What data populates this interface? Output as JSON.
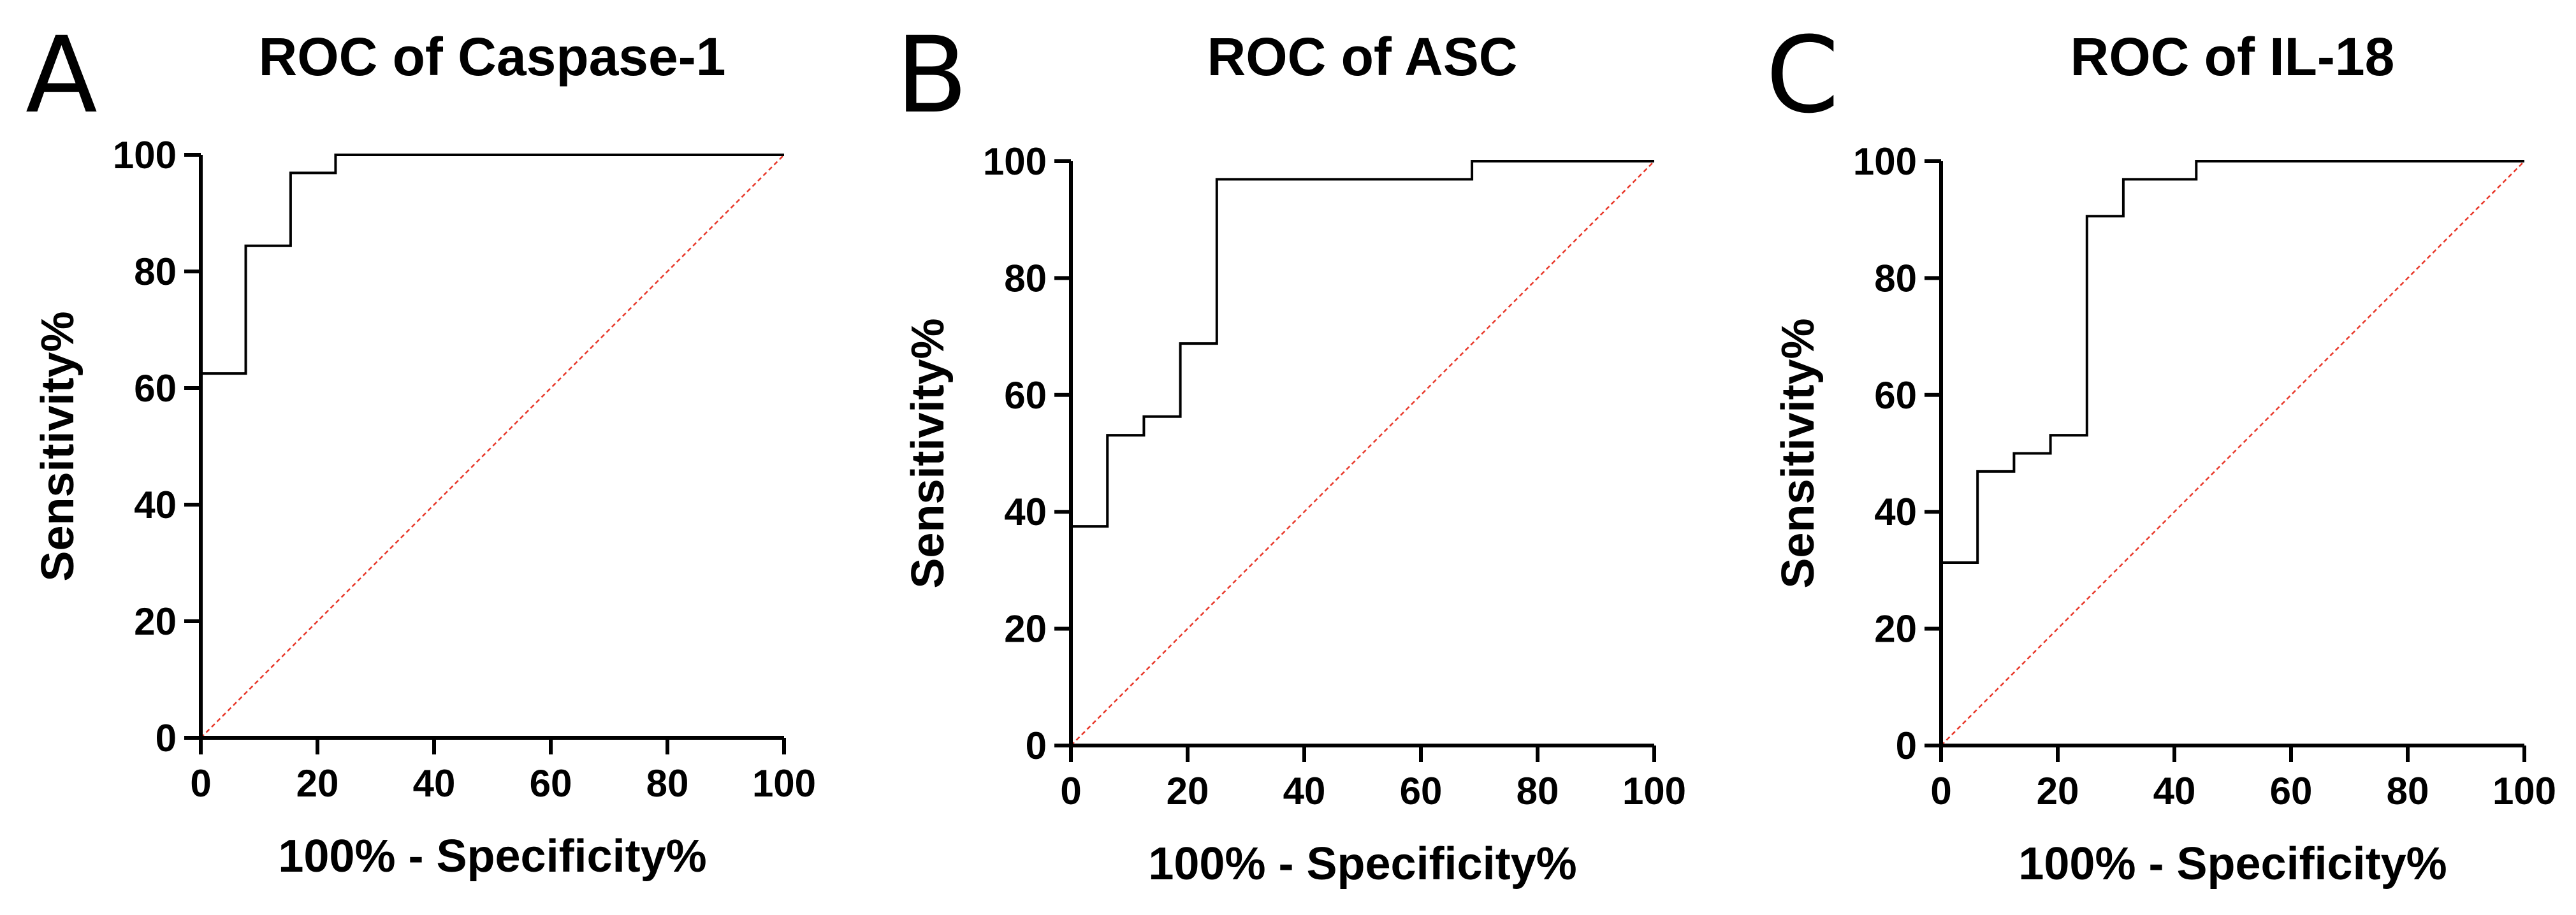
{
  "chart_data": [
    {
      "type": "line",
      "panel": "A",
      "title": "ROC of Caspase-1",
      "xlabel": "100% - Specificity%",
      "ylabel": "Sensitivity%",
      "xlim": [
        0,
        100
      ],
      "ylim": [
        0,
        100
      ],
      "xticks": [
        0,
        20,
        40,
        60,
        80,
        100
      ],
      "yticks": [
        0,
        20,
        40,
        60,
        80,
        100
      ],
      "series": [
        {
          "name": "ROC curve",
          "x": [
            0,
            7.7,
            7.7,
            15.4,
            15.4,
            23.1,
            23.1,
            100
          ],
          "y": [
            62.5,
            62.5,
            84.4,
            84.4,
            96.9,
            96.9,
            100,
            100
          ]
        },
        {
          "name": "Reference line",
          "x": [
            0,
            100
          ],
          "y": [
            0,
            100
          ]
        }
      ]
    },
    {
      "type": "line",
      "panel": "B",
      "title": "ROC of ASC",
      "xlabel": "100% - Specificity%",
      "ylabel": "Sensitivity%",
      "xlim": [
        0,
        100
      ],
      "ylim": [
        0,
        100
      ],
      "xticks": [
        0,
        20,
        40,
        60,
        80,
        100
      ],
      "yticks": [
        0,
        20,
        40,
        60,
        80,
        100
      ],
      "series": [
        {
          "name": "ROC curve",
          "x": [
            0,
            6.25,
            6.25,
            12.5,
            12.5,
            18.75,
            18.75,
            25,
            25,
            68.75,
            68.75,
            100
          ],
          "y": [
            37.5,
            37.5,
            53.1,
            53.1,
            56.3,
            56.3,
            68.8,
            68.8,
            96.9,
            96.9,
            100,
            100
          ]
        },
        {
          "name": "Reference line",
          "x": [
            0,
            100
          ],
          "y": [
            0,
            100
          ]
        }
      ]
    },
    {
      "type": "line",
      "panel": "C",
      "title": "ROC of IL-18",
      "xlabel": "100% - Specificity%",
      "ylabel": "Sensitivity%",
      "xlim": [
        0,
        100
      ],
      "ylim": [
        0,
        100
      ],
      "xticks": [
        0,
        20,
        40,
        60,
        80,
        100
      ],
      "yticks": [
        0,
        20,
        40,
        60,
        80,
        100
      ],
      "series": [
        {
          "name": "ROC curve",
          "x": [
            0,
            6.25,
            6.25,
            12.5,
            12.5,
            18.75,
            18.75,
            25,
            25,
            31.25,
            31.25,
            43.75,
            43.75,
            100
          ],
          "y": [
            31.3,
            31.3,
            46.9,
            46.9,
            50,
            50,
            53.1,
            53.1,
            90.6,
            90.6,
            96.9,
            96.9,
            100,
            100
          ]
        },
        {
          "name": "Reference line",
          "x": [
            0,
            100
          ],
          "y": [
            0,
            100
          ]
        }
      ]
    }
  ]
}
